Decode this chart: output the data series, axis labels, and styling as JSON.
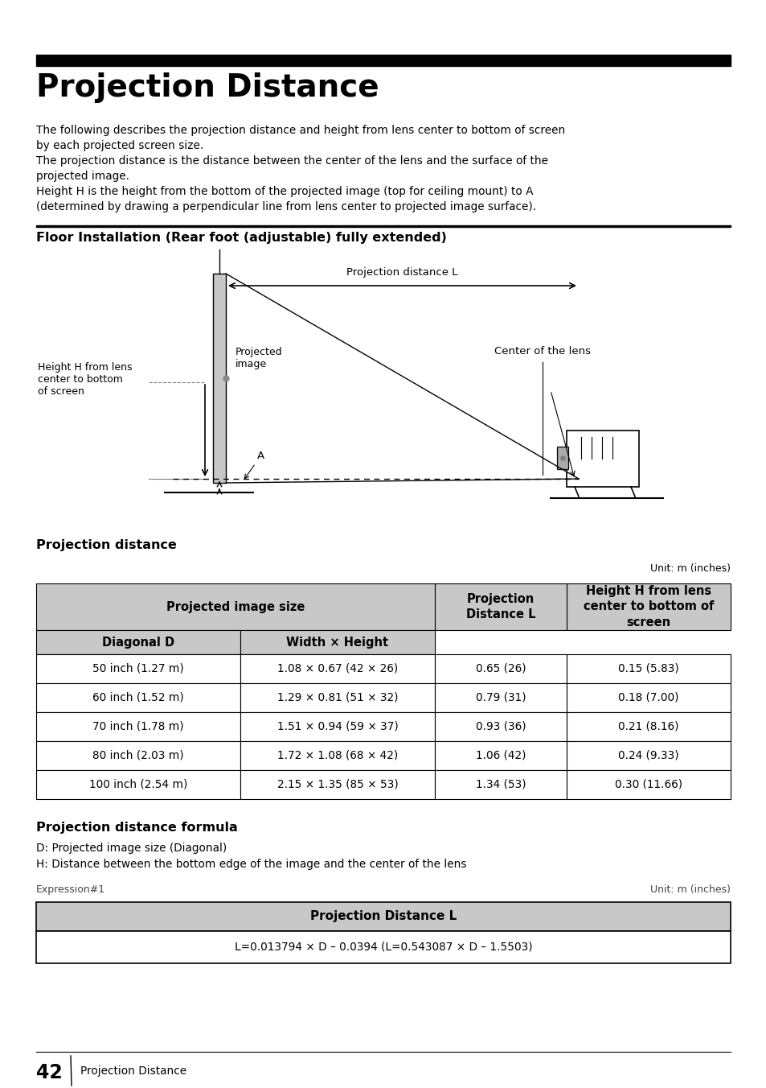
{
  "title": "Projection Distance",
  "top_bar_color": "#000000",
  "section1_title": "Floor Installation (Rear foot (adjustable) fully extended)",
  "section2_title": "Projection distance",
  "unit_label": "Unit: m (inches)",
  "table_header_bg": "#c8c8c8",
  "table_header1": "Projected image size",
  "table_header2": "Projection\nDistance L",
  "table_header3": "Height H from lens\ncenter to bottom of\nscreen",
  "table_subheader1": "Diagonal D",
  "table_subheader2": "Width × Height",
  "table_rows": [
    [
      "50 inch (1.27 m)",
      "1.08 × 0.67 (42 × 26)",
      "0.65 (26)",
      "0.15 (5.83)"
    ],
    [
      "60 inch (1.52 m)",
      "1.29 × 0.81 (51 × 32)",
      "0.79 (31)",
      "0.18 (7.00)"
    ],
    [
      "70 inch (1.78 m)",
      "1.51 × 0.94 (59 × 37)",
      "0.93 (36)",
      "0.21 (8.16)"
    ],
    [
      "80 inch (2.03 m)",
      "1.72 × 1.08 (68 × 42)",
      "1.06 (42)",
      "0.24 (9.33)"
    ],
    [
      "100 inch (2.54 m)",
      "2.15 × 1.35 (85 × 53)",
      "1.34 (53)",
      "0.30 (11.66)"
    ]
  ],
  "formula_title": "Projection distance formula",
  "formula_d": "D: Projected image size (Diagonal)",
  "formula_h": "H: Distance between the bottom edge of the image and the center of the lens",
  "expression_label": "Expression#1",
  "formula_unit": "Unit: m (inches)",
  "formula_table_header": "Projection Distance L",
  "formula_content": "L=0.013794 × D – 0.0394 (L=0.543087 × D – 1.5503)",
  "page_number": "42",
  "page_label": "Projection Distance",
  "body_text": [
    "The following describes the projection distance and height from lens center to bottom of screen",
    "by each projected screen size.",
    "The projection distance is the distance between the center of the lens and the surface of the",
    "projected image.",
    "Height H is the height from the bottom of the projected image (top for ceiling mount) to A",
    "(determined by drawing a perpendicular line from lens center to projected image surface)."
  ]
}
